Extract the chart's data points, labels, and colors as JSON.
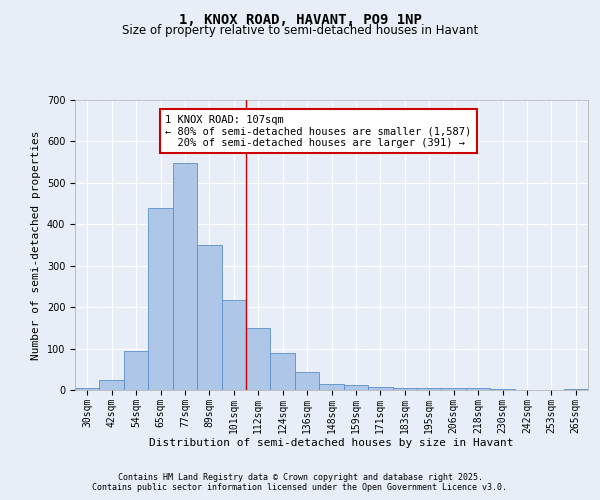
{
  "title": "1, KNOX ROAD, HAVANT, PO9 1NP",
  "subtitle": "Size of property relative to semi-detached houses in Havant",
  "xlabel": "Distribution of semi-detached houses by size in Havant",
  "ylabel": "Number of semi-detached properties",
  "categories": [
    "30sqm",
    "42sqm",
    "54sqm",
    "65sqm",
    "77sqm",
    "89sqm",
    "101sqm",
    "112sqm",
    "124sqm",
    "136sqm",
    "148sqm",
    "159sqm",
    "171sqm",
    "183sqm",
    "195sqm",
    "206sqm",
    "218sqm",
    "230sqm",
    "242sqm",
    "253sqm",
    "265sqm"
  ],
  "values": [
    5,
    25,
    93,
    440,
    548,
    350,
    218,
    150,
    90,
    43,
    15,
    13,
    8,
    6,
    5,
    5,
    4,
    2,
    0,
    0,
    2
  ],
  "bar_color": "#aec6e8",
  "bar_edge_color": "#5b8fc9",
  "reference_bin_index": 6.5,
  "annotation_text": "1 KNOX ROAD: 107sqm\n← 80% of semi-detached houses are smaller (1,587)\n  20% of semi-detached houses are larger (391) →",
  "annotation_box_color": "#ffffff",
  "annotation_box_edge_color": "#cc0000",
  "vline_color": "#cc0000",
  "background_color": "#e8eef8",
  "plot_bg_color": "#e8eef8",
  "ylim": [
    0,
    700
  ],
  "yticks": [
    0,
    100,
    200,
    300,
    400,
    500,
    600,
    700
  ],
  "footer_line1": "Contains HM Land Registry data © Crown copyright and database right 2025.",
  "footer_line2": "Contains public sector information licensed under the Open Government Licence v3.0.",
  "title_fontsize": 10,
  "subtitle_fontsize": 8.5,
  "tick_fontsize": 7,
  "axis_label_fontsize": 8,
  "annotation_fontsize": 7.5,
  "footer_fontsize": 6
}
